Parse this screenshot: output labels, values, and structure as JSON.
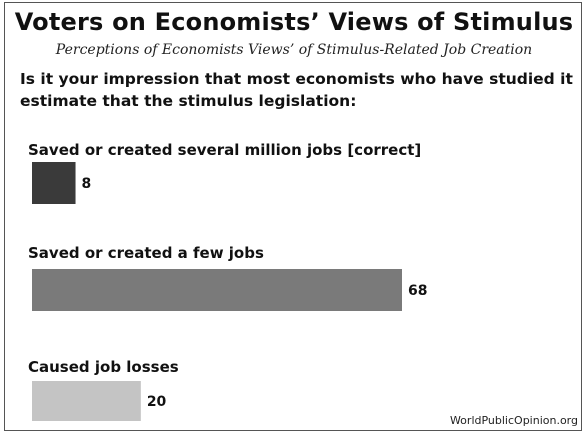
{
  "chart_data": {
    "type": "bar",
    "orientation": "horizontal",
    "title": "Voters on Economists’ Views of Stimulus",
    "subtitle": "Perceptions of Economists Views’ of Stimulus-Related Job Creation",
    "question": "Is it your impression that most economists who have studied it estimate that the stimulus legislation:",
    "categories": [
      "Saved or created several million jobs [correct]",
      "Saved or created a few jobs",
      "Caused job losses"
    ],
    "values": [
      8,
      68,
      20
    ],
    "bar_colors": [
      "#3a3a3a",
      "#7a7a7a",
      "#c4c4c4"
    ],
    "xlim": [
      0,
      100
    ],
    "grid": false,
    "legend": "none",
    "source": "WorldPublicOpinion.org"
  }
}
